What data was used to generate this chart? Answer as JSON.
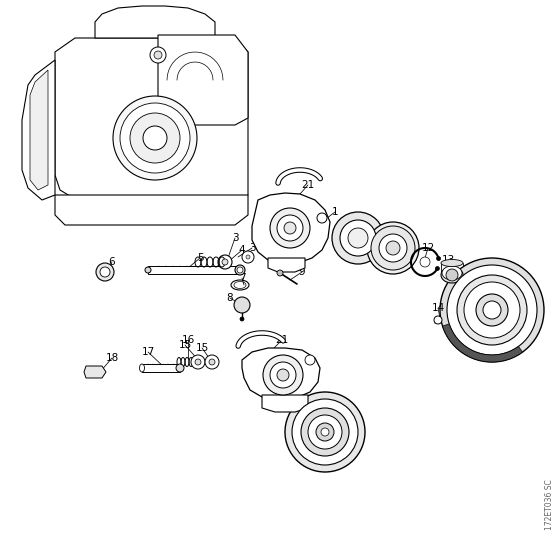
{
  "bg_color": "#ffffff",
  "watermark": "172ET036 SC",
  "lc": "#000000",
  "font_size": 7.5
}
